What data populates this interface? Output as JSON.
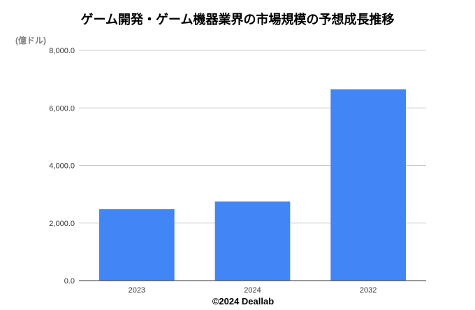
{
  "chart_data": {
    "type": "bar",
    "title": "ゲーム開発・ゲーム機器業界の市場規模の予想成長推移",
    "ylabel": "(億ドル)",
    "xlabel": "",
    "categories": [
      "2023",
      "2024",
      "2032"
    ],
    "values": [
      2480,
      2750,
      6650
    ],
    "ylim": [
      0,
      8000
    ],
    "yticks": [
      "0.0",
      "2,000.0",
      "4,000.0",
      "6,000.0",
      "8,000.0"
    ],
    "ytick_values": [
      0,
      2000,
      4000,
      6000,
      8000
    ],
    "grid": true,
    "legend": "none",
    "bar_color": "#4285f4"
  },
  "footer": {
    "credit": "©2024 Deallab"
  }
}
